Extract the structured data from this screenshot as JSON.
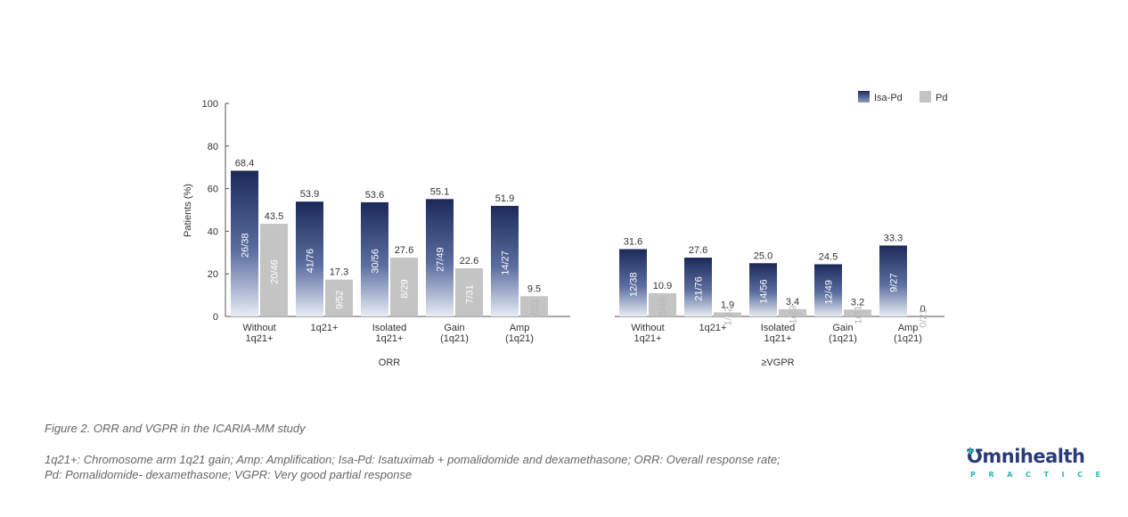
{
  "chart_data": {
    "type": "bar",
    "ylabel": "Patients (%)",
    "ylim": [
      0,
      100
    ],
    "yticks": [
      "0",
      "20",
      "40",
      "60",
      "80",
      "100"
    ],
    "legend": [
      {
        "name": "Isa-Pd",
        "color": "#1e2d5e"
      },
      {
        "name": "Pd",
        "color": "#c4c4c4"
      }
    ],
    "legend_placement": "top-right",
    "groups": [
      {
        "label": "ORR",
        "categories": [
          {
            "line1": "Without",
            "line2": "1q21+"
          },
          {
            "line1": "1q21+",
            "line2": ""
          },
          {
            "line1": "Isolated",
            "line2": "1q21+"
          },
          {
            "line1": "Gain",
            "line2": "(1q21)"
          },
          {
            "line1": "Amp",
            "line2": "(1q21)"
          }
        ],
        "series": [
          {
            "name": "Isa-Pd",
            "values": [
              68.4,
              53.9,
              53.6,
              55.1,
              51.9
            ],
            "value_labels": [
              "68.4",
              "53.9",
              "53.6",
              "55.1",
              "51.9"
            ],
            "counts": [
              "26/38",
              "41/76",
              "30/56",
              "27/49",
              "14/27"
            ]
          },
          {
            "name": "Pd",
            "values": [
              43.5,
              17.3,
              27.6,
              22.6,
              9.5
            ],
            "value_labels": [
              "43.5",
              "17.3",
              "27.6",
              "22.6",
              "9.5"
            ],
            "counts": [
              "20/46",
              "9/52",
              "8/29",
              "7/31",
              "2/21"
            ]
          }
        ]
      },
      {
        "label": "≥VGPR",
        "categories": [
          {
            "line1": "Without",
            "line2": "1q21+"
          },
          {
            "line1": "1q21+",
            "line2": ""
          },
          {
            "line1": "Isolated",
            "line2": "1q21+"
          },
          {
            "line1": "Gain",
            "line2": "(1q21)"
          },
          {
            "line1": "Amp",
            "line2": "(1q21)"
          }
        ],
        "series": [
          {
            "name": "Isa-Pd",
            "values": [
              31.6,
              27.6,
              25.0,
              24.5,
              33.3
            ],
            "value_labels": [
              "31.6",
              "27.6",
              "25.0",
              "24.5",
              "33.3"
            ],
            "counts": [
              "12/38",
              "21/76",
              "14/56",
              "12/49",
              "9/27"
            ]
          },
          {
            "name": "Pd",
            "values": [
              10.9,
              1.9,
              3.4,
              3.2,
              0
            ],
            "value_labels": [
              "10.9",
              "1.9",
              "3.4",
              "3.2",
              "0"
            ],
            "counts": [
              "5/46",
              "1/52",
              "1/29",
              "1/31",
              "0/21"
            ]
          }
        ]
      }
    ]
  },
  "caption": {
    "title": "Figure 2. ORR and VGPR in the ICARIA-MM study",
    "footnote_line1": "1q21+: Chromosome arm 1q21 gain; Amp: Amplification; Isa-Pd: Isatuximab + pomalidomide and dexamethasone; ORR: Overall response rate;",
    "footnote_line2": "Pd: Pomalidomide- dexamethasone; VGPR: Very good partial response"
  },
  "logo": {
    "mark": "Ʊ",
    "brand_part1": "mni",
    "brand_part2": "health",
    "subtitle": "PRACTICE"
  }
}
